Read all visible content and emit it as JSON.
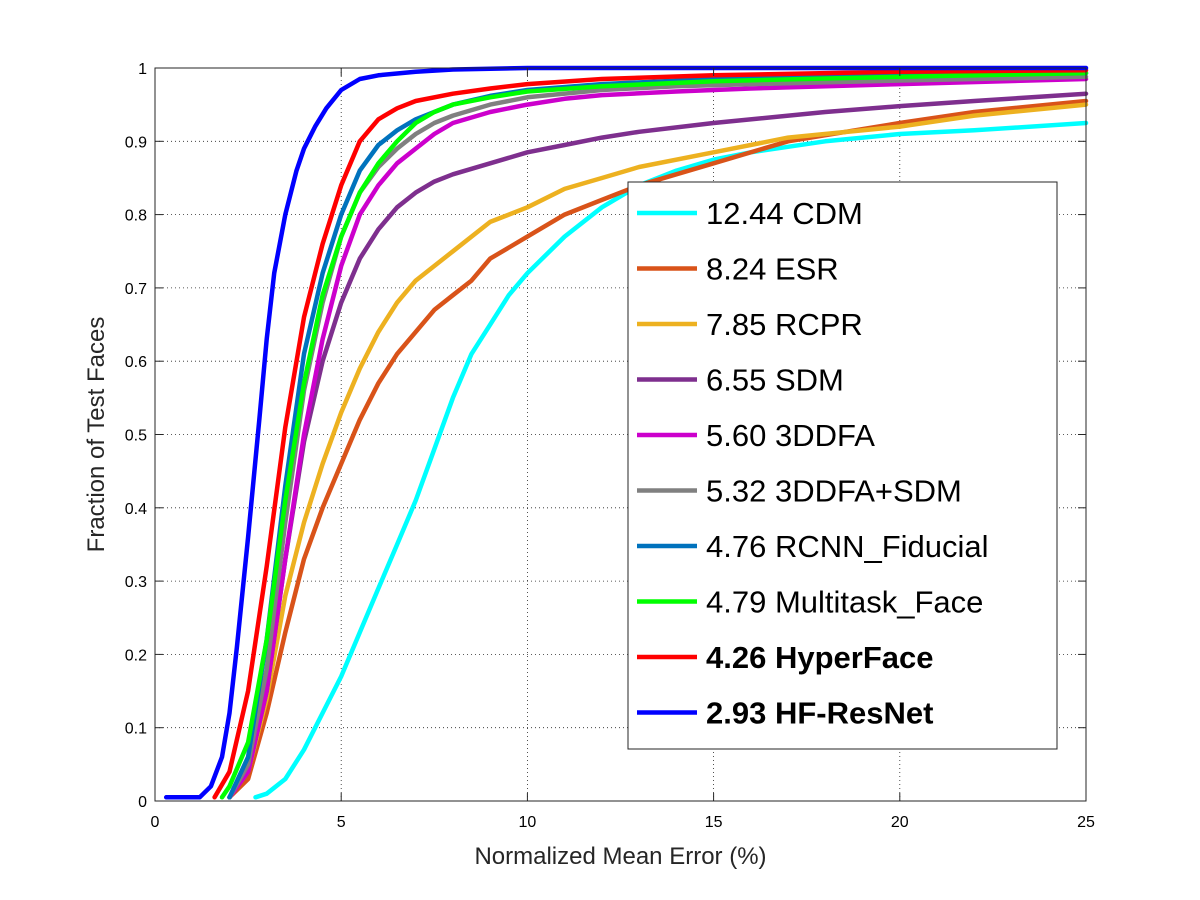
{
  "chart_data": {
    "type": "line",
    "title": "",
    "xlabel": "Normalized Mean Error (%)",
    "ylabel": "Fraction of Test Faces",
    "xlim": [
      0,
      25
    ],
    "ylim": [
      0,
      1
    ],
    "grid": true,
    "legend_position": "lower-right",
    "x_ticks": [
      0,
      5,
      10,
      15,
      20,
      25
    ],
    "x_tick_labels": [
      "0",
      "5",
      "10",
      "15",
      "20",
      "25"
    ],
    "y_ticks": [
      0,
      0.1,
      0.2,
      0.3,
      0.4,
      0.5,
      0.6,
      0.7,
      0.8,
      0.9,
      1
    ],
    "y_tick_labels": [
      "0",
      "0.1",
      "0.2",
      "0.3",
      "0.4",
      "0.5",
      "0.6",
      "0.7",
      "0.8",
      "0.9",
      "1"
    ],
    "series": [
      {
        "name": "12.44 CDM",
        "color": "#00FFFF",
        "bold": false,
        "x": [
          2.7,
          3.0,
          3.5,
          4.0,
          4.5,
          5.0,
          5.5,
          6.0,
          6.5,
          7.0,
          7.5,
          8.0,
          8.5,
          9.0,
          9.5,
          10.0,
          11.0,
          12.0,
          13.0,
          14.0,
          15.0,
          16.0,
          18.0,
          20.0,
          22.0,
          25.0
        ],
        "y": [
          0.005,
          0.01,
          0.03,
          0.07,
          0.12,
          0.17,
          0.23,
          0.29,
          0.35,
          0.41,
          0.48,
          0.55,
          0.61,
          0.65,
          0.69,
          0.72,
          0.77,
          0.81,
          0.84,
          0.86,
          0.875,
          0.885,
          0.9,
          0.91,
          0.915,
          0.925
        ]
      },
      {
        "name": "8.24 ESR",
        "color": "#D95319",
        "bold": false,
        "x": [
          2.0,
          2.5,
          3.0,
          3.5,
          4.0,
          4.5,
          5.0,
          5.5,
          6.0,
          6.5,
          7.0,
          7.5,
          8.0,
          8.5,
          9.0,
          10.0,
          11.0,
          12.0,
          13.0,
          15.0,
          17.0,
          20.0,
          22.0,
          25.0
        ],
        "y": [
          0.005,
          0.03,
          0.12,
          0.23,
          0.33,
          0.4,
          0.46,
          0.52,
          0.57,
          0.61,
          0.64,
          0.67,
          0.69,
          0.71,
          0.74,
          0.77,
          0.8,
          0.82,
          0.84,
          0.87,
          0.9,
          0.925,
          0.94,
          0.955
        ]
      },
      {
        "name": "7.85 RCPR",
        "color": "#EDB120",
        "bold": false,
        "x": [
          2.0,
          2.5,
          3.0,
          3.5,
          4.0,
          4.5,
          5.0,
          5.5,
          6.0,
          6.5,
          7.0,
          8.0,
          9.0,
          10.0,
          11.0,
          12.0,
          13.0,
          15.0,
          17.0,
          20.0,
          22.0,
          25.0
        ],
        "y": [
          0.005,
          0.04,
          0.14,
          0.28,
          0.38,
          0.46,
          0.53,
          0.59,
          0.64,
          0.68,
          0.71,
          0.75,
          0.79,
          0.81,
          0.835,
          0.85,
          0.865,
          0.885,
          0.905,
          0.92,
          0.935,
          0.95
        ]
      },
      {
        "name": "6.55 SDM",
        "color": "#7E2F8E",
        "bold": false,
        "x": [
          2.0,
          2.5,
          3.0,
          3.5,
          4.0,
          4.5,
          5.0,
          5.5,
          6.0,
          6.5,
          7.0,
          7.5,
          8.0,
          9.0,
          10.0,
          11.0,
          12.0,
          13.0,
          15.0,
          18.0,
          20.0,
          22.0,
          25.0
        ],
        "y": [
          0.005,
          0.04,
          0.15,
          0.33,
          0.49,
          0.6,
          0.68,
          0.74,
          0.78,
          0.81,
          0.83,
          0.845,
          0.855,
          0.87,
          0.885,
          0.895,
          0.905,
          0.913,
          0.925,
          0.94,
          0.948,
          0.955,
          0.965
        ]
      },
      {
        "name": "5.60 3DDFA",
        "color": "#CC00CC",
        "bold": false,
        "x": [
          2.0,
          2.5,
          3.0,
          3.5,
          4.0,
          4.5,
          5.0,
          5.5,
          6.0,
          6.5,
          7.0,
          7.5,
          8.0,
          9.0,
          10.0,
          11.0,
          12.0,
          14.0,
          16.0,
          20.0,
          25.0
        ],
        "y": [
          0.005,
          0.04,
          0.15,
          0.33,
          0.5,
          0.63,
          0.73,
          0.8,
          0.84,
          0.87,
          0.89,
          0.91,
          0.925,
          0.94,
          0.95,
          0.958,
          0.963,
          0.968,
          0.972,
          0.978,
          0.985
        ]
      },
      {
        "name": "5.32 3DDFA+SDM",
        "color": "#808080",
        "bold": false,
        "x": [
          2.0,
          2.5,
          3.0,
          3.5,
          4.0,
          4.5,
          5.0,
          5.5,
          6.0,
          6.5,
          7.0,
          7.5,
          8.0,
          9.0,
          10.0,
          12.0,
          14.0,
          16.0,
          20.0,
          25.0
        ],
        "y": [
          0.005,
          0.05,
          0.18,
          0.38,
          0.56,
          0.68,
          0.77,
          0.83,
          0.865,
          0.89,
          0.91,
          0.925,
          0.935,
          0.95,
          0.96,
          0.97,
          0.975,
          0.978,
          0.983,
          0.988
        ]
      },
      {
        "name": "4.76 RCNN_Fiducial",
        "color": "#0072BD",
        "bold": false,
        "x": [
          2.0,
          2.5,
          3.0,
          3.5,
          4.0,
          4.5,
          5.0,
          5.5,
          6.0,
          6.5,
          7.0,
          8.0,
          9.0,
          10.0,
          12.0,
          15.0,
          20.0,
          25.0
        ],
        "y": [
          0.005,
          0.06,
          0.22,
          0.43,
          0.61,
          0.72,
          0.8,
          0.86,
          0.895,
          0.915,
          0.93,
          0.95,
          0.962,
          0.97,
          0.978,
          0.985,
          0.99,
          0.993
        ]
      },
      {
        "name": "4.79 Multitask_Face",
        "color": "#00FF00",
        "bold": false,
        "x": [
          1.8,
          2.0,
          2.5,
          3.0,
          3.5,
          4.0,
          4.5,
          5.0,
          5.5,
          6.0,
          6.5,
          7.0,
          7.5,
          8.0,
          9.0,
          10.0,
          12.0,
          15.0,
          20.0,
          25.0
        ],
        "y": [
          0.005,
          0.02,
          0.08,
          0.22,
          0.41,
          0.57,
          0.69,
          0.77,
          0.83,
          0.87,
          0.9,
          0.925,
          0.94,
          0.95,
          0.96,
          0.968,
          0.975,
          0.982,
          0.988,
          0.993
        ]
      },
      {
        "name": "4.26 HyperFace",
        "color": "#FF0000",
        "bold": true,
        "x": [
          1.6,
          2.0,
          2.5,
          3.0,
          3.5,
          4.0,
          4.5,
          5.0,
          5.5,
          6.0,
          6.5,
          7.0,
          8.0,
          9.0,
          10.0,
          12.0,
          15.0,
          20.0,
          25.0
        ],
        "y": [
          0.005,
          0.04,
          0.15,
          0.32,
          0.51,
          0.66,
          0.76,
          0.84,
          0.9,
          0.93,
          0.945,
          0.955,
          0.965,
          0.972,
          0.978,
          0.985,
          0.99,
          0.995,
          0.997
        ]
      },
      {
        "name": "2.93 HF-ResNet",
        "color": "#0000FF",
        "bold": true,
        "x": [
          0.3,
          1.2,
          1.5,
          1.8,
          2.0,
          2.2,
          2.5,
          2.8,
          3.0,
          3.2,
          3.5,
          3.8,
          4.0,
          4.3,
          4.6,
          5.0,
          5.5,
          6.0,
          7.0,
          8.0,
          10.0,
          15.0,
          20.0,
          25.0
        ],
        "y": [
          0.005,
          0.005,
          0.02,
          0.06,
          0.12,
          0.21,
          0.36,
          0.52,
          0.63,
          0.72,
          0.8,
          0.86,
          0.89,
          0.92,
          0.945,
          0.97,
          0.985,
          0.99,
          0.995,
          0.998,
          1.0,
          1.0,
          1.0,
          1.0
        ]
      }
    ]
  }
}
